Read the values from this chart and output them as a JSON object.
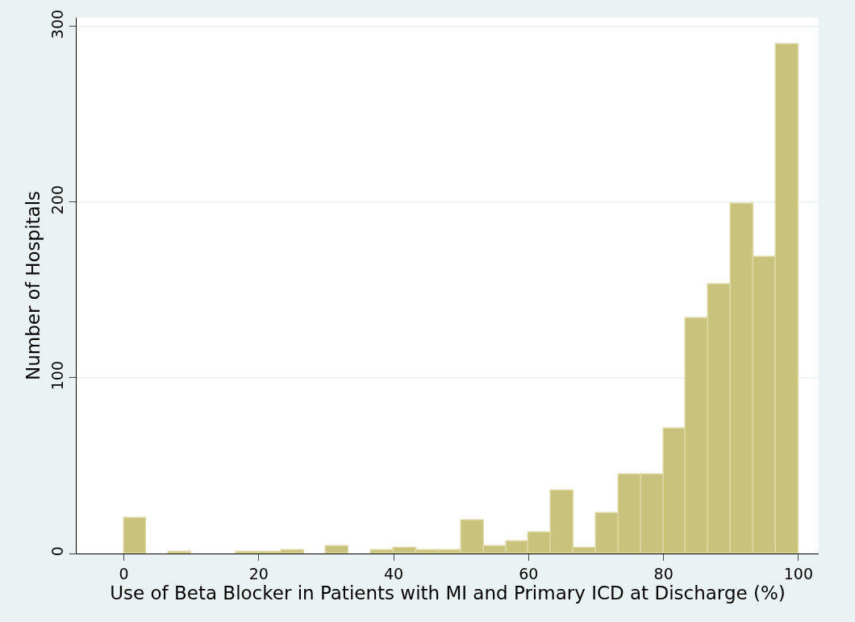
{
  "chart_data": {
    "type": "histogram",
    "xlabel": "Use of Beta Blocker in Patients with MI and Primary ICD at Discharge (%)",
    "ylabel": "Number of Hospitals",
    "bins": [
      0,
      3.33,
      6.67,
      10,
      13.33,
      16.67,
      20,
      23.33,
      26.67,
      30,
      33.33,
      36.67,
      40,
      43.33,
      46.67,
      50,
      53.33,
      56.67,
      60,
      63.33,
      66.67,
      70,
      73.33,
      76.67,
      80,
      83.33,
      86.67,
      90,
      93.33,
      96.67,
      100
    ],
    "values": [
      20,
      0,
      1,
      0,
      0,
      1,
      1,
      2,
      0,
      4,
      0,
      2,
      3,
      2,
      2,
      19,
      4,
      7,
      12,
      36,
      3,
      23,
      45,
      45,
      71,
      134,
      153,
      199,
      169,
      290
    ],
    "color": "#c9c27c",
    "xlim": [
      -7,
      103
    ],
    "xticks": [
      0,
      20,
      40,
      60,
      80,
      100
    ],
    "ylim": [
      0,
      305
    ],
    "yticks": [
      0,
      100,
      200,
      300
    ],
    "grid": "y",
    "legend": false
  }
}
